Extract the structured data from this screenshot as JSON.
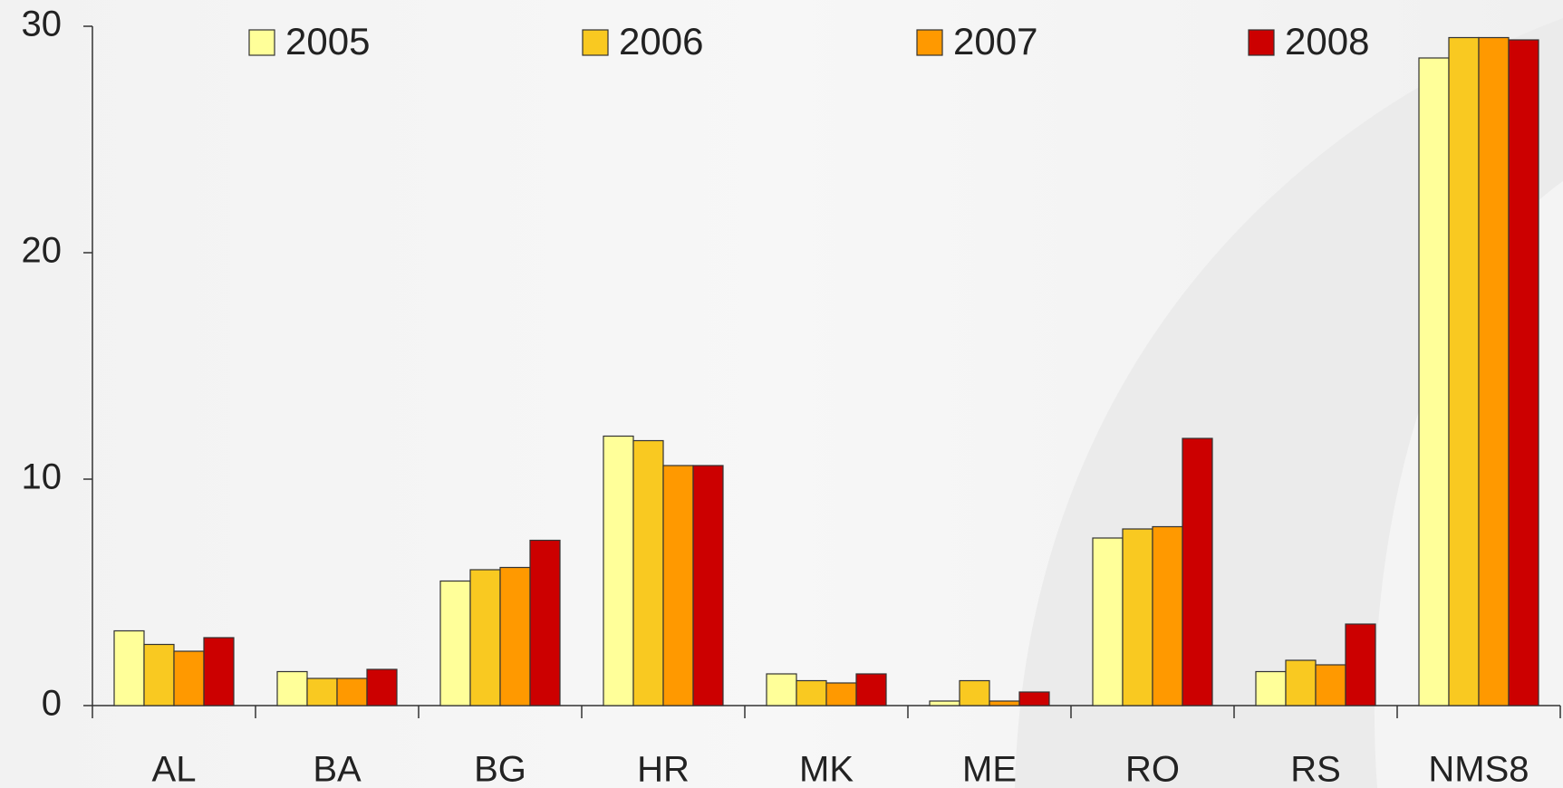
{
  "chart_data": {
    "type": "bar",
    "categories": [
      "AL",
      "BA",
      "BG",
      "HR",
      "MK",
      "ME",
      "RO",
      "RS",
      "NMS8"
    ],
    "series": [
      {
        "name": "2005",
        "color": "#ffff99",
        "values": [
          3.3,
          1.5,
          5.5,
          11.9,
          1.4,
          0.2,
          7.4,
          1.5,
          28.6
        ]
      },
      {
        "name": "2006",
        "color": "#f9c921",
        "values": [
          2.7,
          1.2,
          6.0,
          11.7,
          1.1,
          1.1,
          7.8,
          2.0,
          29.5
        ]
      },
      {
        "name": "2007",
        "color": "#ff9900",
        "values": [
          2.4,
          1.2,
          6.1,
          10.6,
          1.0,
          0.2,
          7.9,
          1.8,
          29.5
        ]
      },
      {
        "name": "2008",
        "color": "#cc0000",
        "values": [
          3.0,
          1.6,
          7.3,
          10.6,
          1.4,
          0.6,
          11.8,
          3.6,
          29.4
        ]
      }
    ],
    "ylim": [
      0,
      30
    ],
    "yticks": [
      0,
      10,
      20,
      30
    ],
    "legend": "top"
  }
}
